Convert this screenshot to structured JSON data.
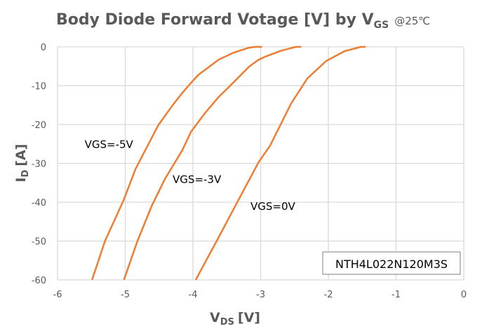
{
  "chart_data": {
    "type": "line",
    "title": "Body Diode Forward Votage [V] by V",
    "title_sub": "GS",
    "title_note": "@25℃",
    "xlabel": "V",
    "xlabel_sub": "DS",
    "xlabel_unit": "[V]",
    "ylabel": "I",
    "ylabel_sub": "D",
    "ylabel_unit": "[A]",
    "xlim": [
      -6,
      0
    ],
    "ylim": [
      -60,
      0
    ],
    "xticks": [
      -6,
      -5,
      -4,
      -3,
      -2,
      -1,
      0
    ],
    "yticks": [
      0,
      -10,
      -20,
      -30,
      -40,
      -50,
      -60
    ],
    "grid": true,
    "line_color": "#ED7D31",
    "annotation_box": "NTH4L022N120M3S",
    "series": [
      {
        "name": "VGS=-5V",
        "points": [
          [
            -5.49,
            -60
          ],
          [
            -5.3,
            -50
          ],
          [
            -5.02,
            -39.3
          ],
          [
            -4.85,
            -31.5
          ],
          [
            -4.51,
            -20.1
          ],
          [
            -4.3,
            -15
          ],
          [
            -4.16,
            -11.9
          ],
          [
            -4.03,
            -9.3
          ],
          [
            -3.92,
            -7.2
          ],
          [
            -3.62,
            -3.3
          ],
          [
            -3.4,
            -1.5
          ],
          [
            -3.17,
            -0.2
          ],
          [
            -3.08,
            0
          ],
          [
            -2.98,
            0
          ]
        ]
      },
      {
        "name": "VGS=-3V",
        "points": [
          [
            -5.02,
            -60
          ],
          [
            -4.82,
            -50
          ],
          [
            -4.61,
            -41
          ],
          [
            -4.41,
            -33.9
          ],
          [
            -4.16,
            -26.7
          ],
          [
            -4.03,
            -21.9
          ],
          [
            -3.82,
            -17
          ],
          [
            -3.62,
            -12.9
          ],
          [
            -3.48,
            -10.5
          ],
          [
            -3.17,
            -5.1
          ],
          [
            -3.03,
            -3.3
          ],
          [
            -2.93,
            -2.5
          ],
          [
            -2.7,
            -1.0
          ],
          [
            -2.48,
            0
          ],
          [
            -2.4,
            0
          ]
        ]
      },
      {
        "name": "VGS=0V",
        "points": [
          [
            -3.96,
            -60
          ],
          [
            -3.65,
            -50
          ],
          [
            -3.34,
            -39.8
          ],
          [
            -3.03,
            -29.7
          ],
          [
            -2.86,
            -25.4
          ],
          [
            -2.55,
            -14.6
          ],
          [
            -2.31,
            -8.1
          ],
          [
            -2.03,
            -3.6
          ],
          [
            -1.76,
            -1.1
          ],
          [
            -1.52,
            0
          ],
          [
            -1.45,
            0
          ]
        ]
      }
    ]
  }
}
